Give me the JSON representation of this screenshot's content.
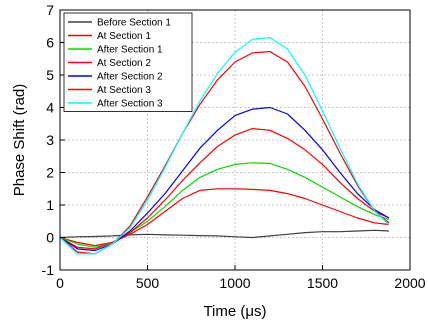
{
  "chart_data": {
    "type": "line",
    "xlabel": "Time (μs)",
    "ylabel": "Phase Shift (rad)",
    "xlim": [
      0,
      2000
    ],
    "ylim": [
      -1,
      7
    ],
    "xticks": [
      0,
      500,
      1000,
      1500,
      2000
    ],
    "yticks": [
      -1,
      0,
      1,
      2,
      3,
      4,
      5,
      6,
      7
    ],
    "grid": true,
    "legend_position": "top-left",
    "series": [
      {
        "name": "Before Section 1",
        "color": "#404040",
        "x": [
          0,
          100,
          200,
          300,
          400,
          500,
          600,
          700,
          800,
          900,
          1000,
          1100,
          1200,
          1300,
          1400,
          1500,
          1600,
          1700,
          1800,
          1880
        ],
        "y": [
          0,
          0.02,
          0.03,
          0.05,
          0.08,
          0.1,
          0.08,
          0.07,
          0.06,
          0.05,
          0.02,
          0.0,
          0.05,
          0.1,
          0.15,
          0.18,
          0.18,
          0.2,
          0.22,
          0.2
        ]
      },
      {
        "name": "At Section 1",
        "color": "#ff0000",
        "x": [
          0,
          100,
          200,
          300,
          400,
          500,
          600,
          700,
          800,
          900,
          1000,
          1100,
          1200,
          1300,
          1400,
          1500,
          1600,
          1700,
          1800,
          1880
        ],
        "y": [
          0,
          -0.15,
          -0.25,
          -0.15,
          0.1,
          0.4,
          0.8,
          1.2,
          1.45,
          1.5,
          1.5,
          1.48,
          1.45,
          1.35,
          1.2,
          1.0,
          0.8,
          0.6,
          0.45,
          0.4
        ]
      },
      {
        "name": "After Section 1",
        "color": "#00dd00",
        "x": [
          0,
          100,
          200,
          300,
          400,
          500,
          600,
          700,
          800,
          900,
          1000,
          1100,
          1200,
          1300,
          1400,
          1500,
          1600,
          1700,
          1800,
          1880
        ],
        "y": [
          0,
          -0.2,
          -0.3,
          -0.15,
          0.15,
          0.5,
          0.95,
          1.45,
          1.85,
          2.1,
          2.25,
          2.3,
          2.28,
          2.1,
          1.85,
          1.55,
          1.25,
          0.95,
          0.7,
          0.55
        ]
      },
      {
        "name": "At Section 2",
        "color": "#ff0000",
        "x": [
          0,
          100,
          200,
          300,
          400,
          500,
          600,
          700,
          800,
          900,
          1000,
          1100,
          1200,
          1300,
          1400,
          1500,
          1600,
          1700,
          1800,
          1880
        ],
        "y": [
          0,
          -0.3,
          -0.35,
          -0.15,
          0.15,
          0.6,
          1.15,
          1.75,
          2.3,
          2.8,
          3.15,
          3.35,
          3.3,
          3.05,
          2.7,
          2.25,
          1.7,
          1.2,
          0.8,
          0.6
        ]
      },
      {
        "name": "After Section 2",
        "color": "#0000ff",
        "x": [
          0,
          100,
          200,
          300,
          400,
          500,
          600,
          700,
          800,
          900,
          1000,
          1100,
          1200,
          1300,
          1400,
          1500,
          1600,
          1700,
          1800,
          1880
        ],
        "y": [
          0,
          -0.35,
          -0.4,
          -0.2,
          0.2,
          0.75,
          1.35,
          2.05,
          2.75,
          3.3,
          3.75,
          3.95,
          4.0,
          3.8,
          3.3,
          2.7,
          2.0,
          1.35,
          0.85,
          0.6
        ]
      },
      {
        "name": "At Section 3",
        "color": "#ff0000",
        "x": [
          0,
          100,
          200,
          300,
          400,
          500,
          600,
          700,
          800,
          900,
          1000,
          1100,
          1200,
          1300,
          1400,
          1500,
          1600,
          1700,
          1800,
          1880
        ],
        "y": [
          0,
          -0.45,
          -0.5,
          -0.2,
          0.35,
          1.25,
          2.2,
          3.2,
          4.1,
          4.85,
          5.4,
          5.68,
          5.72,
          5.4,
          4.65,
          3.65,
          2.6,
          1.6,
          0.8,
          0.45
        ]
      },
      {
        "name": "After Section 3",
        "color": "#00ffff",
        "x": [
          0,
          100,
          200,
          300,
          400,
          500,
          600,
          700,
          800,
          900,
          1000,
          1100,
          1200,
          1300,
          1400,
          1500,
          1600,
          1700,
          1800,
          1880
        ],
        "y": [
          0,
          -0.5,
          -0.5,
          -0.2,
          0.3,
          1.15,
          2.15,
          3.2,
          4.2,
          5.05,
          5.7,
          6.1,
          6.15,
          5.8,
          5.0,
          3.9,
          2.75,
          1.65,
          0.8,
          0.4
        ]
      }
    ]
  }
}
